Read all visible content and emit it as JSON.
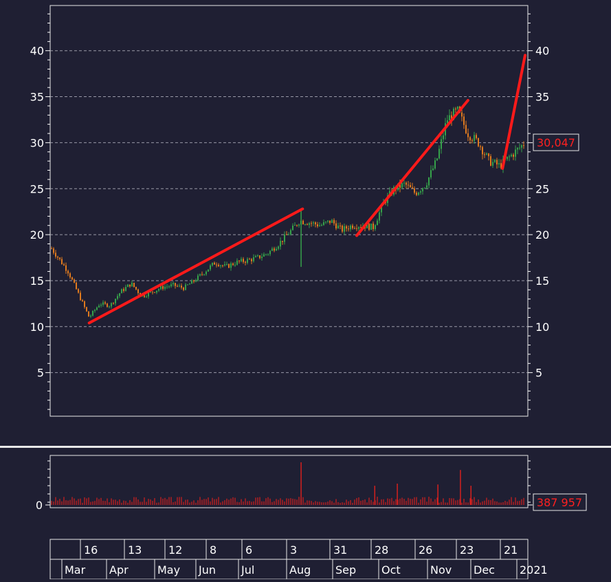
{
  "chart_data": {
    "type": "candlestick",
    "price_axis": {
      "ylim": [
        0,
        45
      ],
      "tick_values": [
        5,
        10,
        15,
        20,
        25,
        30,
        35,
        40
      ],
      "tick_labels": [
        "5",
        "10",
        "15",
        "20",
        "25",
        "30",
        "35",
        "40"
      ],
      "grid": true
    },
    "last_price_label": "30,047",
    "volume_axis": {
      "tick_labels": [
        "0"
      ]
    },
    "last_volume_label": "387 957",
    "date_axis": {
      "day_labels": [
        "16",
        "13",
        "12",
        "8",
        "6",
        "3",
        "31",
        "28",
        "26",
        "23",
        "21"
      ],
      "month_labels": [
        "Mar",
        "Apr",
        "May",
        "Jun",
        "Jul",
        "Aug",
        "Sep",
        "Oct",
        "Nov",
        "Dec",
        "2021"
      ]
    },
    "trend_lines": [
      {
        "from": [
          "2020-03-16",
          10.4
        ],
        "to": [
          "2020-08-05",
          22.8
        ]
      },
      {
        "from": [
          "2020-09-10",
          19.9
        ],
        "to": [
          "2020-11-23",
          34.6
        ]
      },
      {
        "from": [
          "2020-12-16",
          27.2
        ],
        "to": [
          "2020-12-31",
          39.5
        ]
      }
    ],
    "price_path": [
      [
        "2020-02-20",
        18.5
      ],
      [
        "2020-03-02",
        16.0
      ],
      [
        "2020-03-09",
        13.5
      ],
      [
        "2020-03-16",
        11.0
      ],
      [
        "2020-03-23",
        12.5
      ],
      [
        "2020-03-30",
        12.3
      ],
      [
        "2020-04-06",
        13.8
      ],
      [
        "2020-04-13",
        14.7
      ],
      [
        "2020-04-20",
        13.3
      ],
      [
        "2020-04-27",
        13.8
      ],
      [
        "2020-05-04",
        14.3
      ],
      [
        "2020-05-11",
        14.5
      ],
      [
        "2020-05-18",
        14.2
      ],
      [
        "2020-05-25",
        15.0
      ],
      [
        "2020-06-01",
        16.0
      ],
      [
        "2020-06-08",
        17.0
      ],
      [
        "2020-06-15",
        16.5
      ],
      [
        "2020-06-22",
        17.0
      ],
      [
        "2020-06-29",
        17.2
      ],
      [
        "2020-07-06",
        17.5
      ],
      [
        "2020-07-13",
        18.0
      ],
      [
        "2020-07-20",
        19.0
      ],
      [
        "2020-07-27",
        20.2
      ],
      [
        "2020-08-03",
        21.5
      ],
      [
        "2020-08-10",
        21.3
      ],
      [
        "2020-08-17",
        21.0
      ],
      [
        "2020-08-24",
        21.5
      ],
      [
        "2020-08-31",
        20.5
      ],
      [
        "2020-09-07",
        21.0
      ],
      [
        "2020-09-14",
        21.0
      ],
      [
        "2020-09-21",
        20.8
      ],
      [
        "2020-09-28",
        23.5
      ],
      [
        "2020-10-05",
        25.0
      ],
      [
        "2020-10-12",
        25.5
      ],
      [
        "2020-10-19",
        24.5
      ],
      [
        "2020-10-26",
        25.5
      ],
      [
        "2020-11-02",
        28.0
      ],
      [
        "2020-11-09",
        32.5
      ],
      [
        "2020-11-16",
        33.5
      ],
      [
        "2020-11-23",
        31.0
      ],
      [
        "2020-11-30",
        30.0
      ],
      [
        "2020-12-07",
        28.0
      ],
      [
        "2020-12-14",
        27.5
      ],
      [
        "2020-12-21",
        28.5
      ],
      [
        "2020-12-31",
        30.0
      ]
    ],
    "volume_spikes": [
      {
        "date": "2020-08-04",
        "relative": 1.0
      },
      {
        "date": "2020-11-18",
        "relative": 0.82
      },
      {
        "date": "2020-09-22",
        "relative": 0.45
      },
      {
        "date": "2020-10-07",
        "relative": 0.5
      },
      {
        "date": "2020-11-03",
        "relative": 0.48
      },
      {
        "date": "2020-11-25",
        "relative": 0.45
      }
    ],
    "colors": {
      "background": "#1f1f33",
      "up_candle": "#35a24a",
      "down_candle": "#e07a1e",
      "trend_line": "#ff1a1a",
      "volume_bars": "#d6201e",
      "label_text_red": "#ff2020",
      "grid": "#9a9aa8",
      "axis": "#ffffff"
    }
  }
}
